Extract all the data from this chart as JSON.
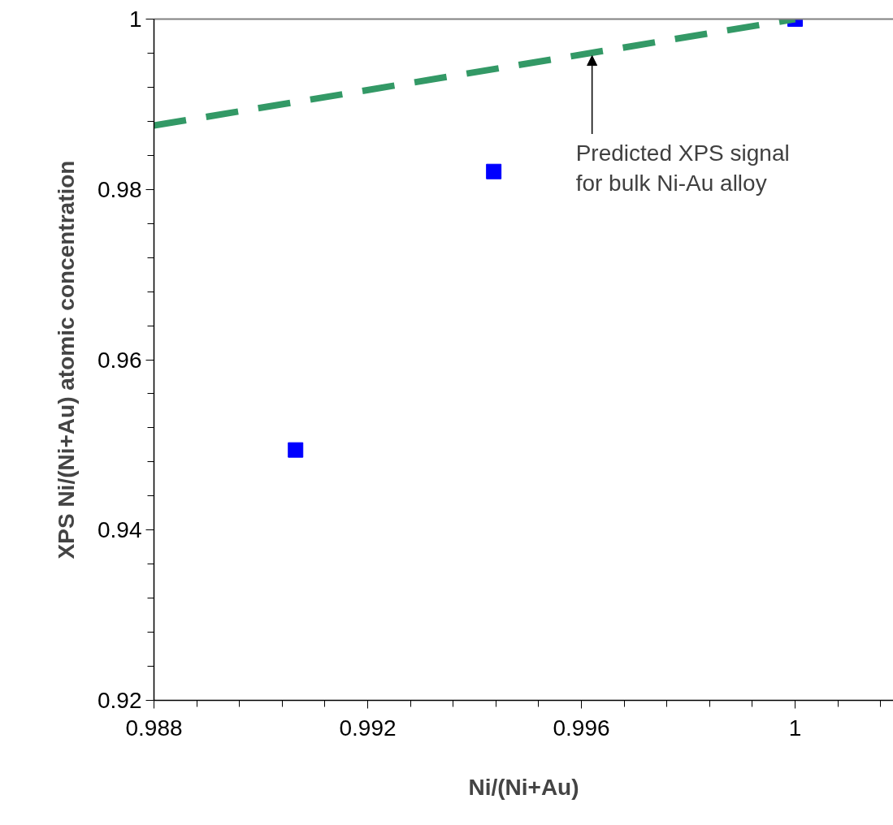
{
  "chart_data": {
    "type": "scatter",
    "xlabel": "Ni/(Ni+Au)",
    "ylabel": "XPS Ni/(Ni+Au) atomic concentration",
    "xlim": [
      0.988,
      1.00184
    ],
    "xticks": [
      0.988,
      0.992,
      0.996,
      1
    ],
    "ylim": [
      0.92,
      1
    ],
    "yticks": [
      0.92,
      0.94,
      0.96,
      0.98,
      1
    ],
    "marker": "square",
    "grid": false,
    "series": [
      {
        "color": "#0000ff",
        "x": [
          0.99065,
          0.99436,
          1
        ],
        "values": [
          0.9494,
          0.9821,
          1.0
        ]
      },
      {
        "type": "line",
        "color": "#339966",
        "line_style": "dashed",
        "marker": "none",
        "x": [
          0.988,
          1
        ],
        "values": [
          0.9875,
          1.0
        ]
      }
    ],
    "annotations": [
      {
        "text": "Predicted XPS signal\nfor bulk Ni-Au alloy",
        "x": 0.9962,
        "y": 0.996
      }
    ]
  }
}
